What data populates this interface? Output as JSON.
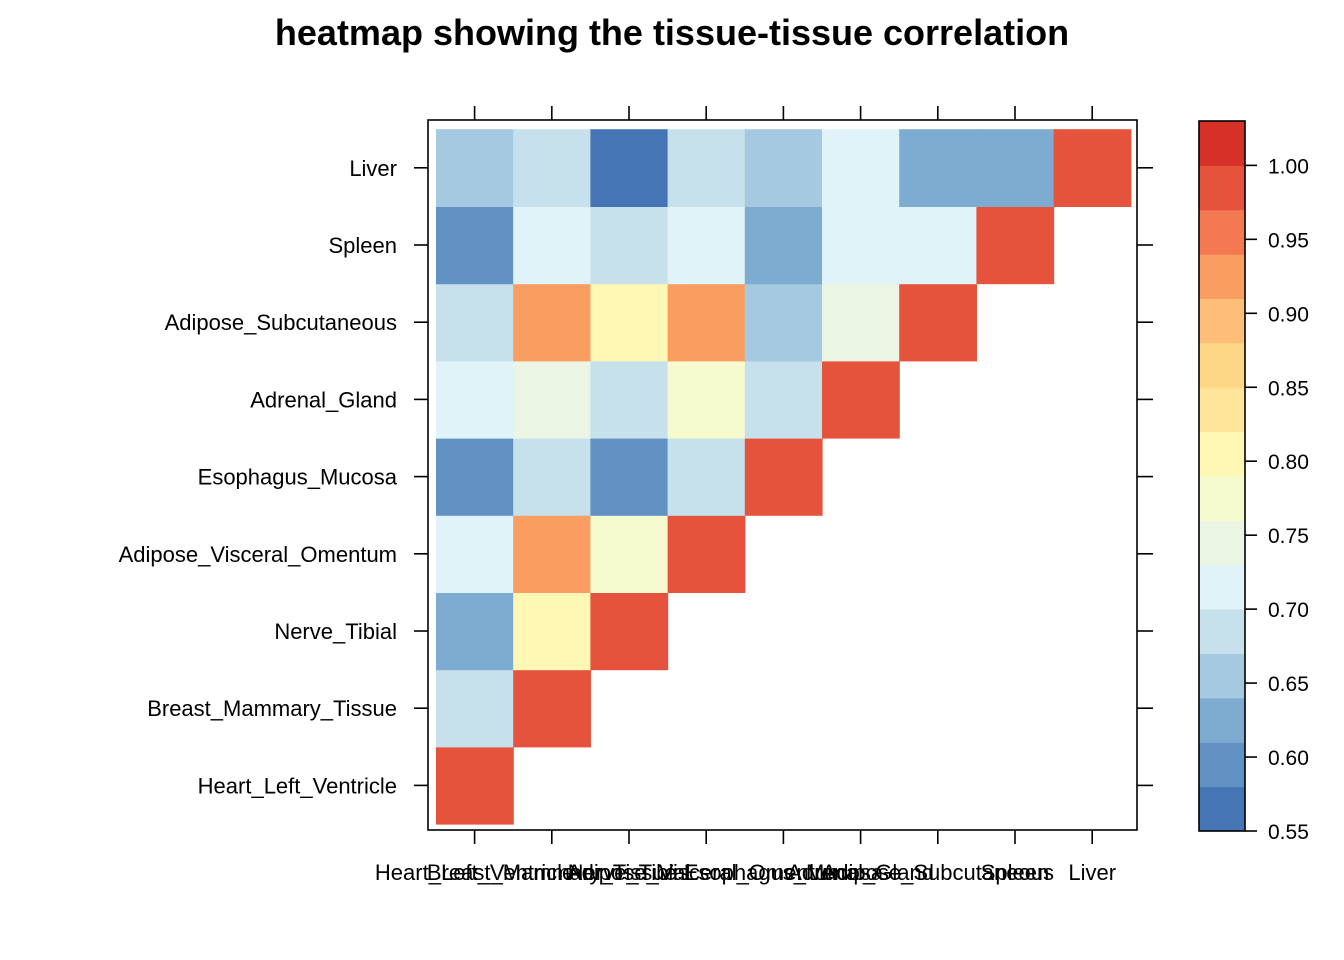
{
  "chart_data": {
    "type": "heatmap",
    "title": "heatmap showing the tissue-tissue correlation",
    "xlabel": "",
    "ylabel": "",
    "tissues": [
      "Heart_Left_Ventricle",
      "Breast_Mammary_Tissue",
      "Nerve_Tibial",
      "Adipose_Visceral_Omentum",
      "Esophagus_Mucosa",
      "Adrenal_Gland",
      "Adipose_Subcutaneous",
      "Spleen",
      "Liver"
    ],
    "matrix": [
      [
        1.0,
        null,
        null,
        null,
        null,
        null,
        null,
        null,
        null
      ],
      [
        0.68,
        1.0,
        null,
        null,
        null,
        null,
        null,
        null,
        null
      ],
      [
        0.63,
        0.79,
        1.0,
        null,
        null,
        null,
        null,
        null,
        null
      ],
      [
        0.71,
        0.94,
        0.77,
        1.0,
        null,
        null,
        null,
        null,
        null
      ],
      [
        0.61,
        0.68,
        0.61,
        0.68,
        1.0,
        null,
        null,
        null,
        null
      ],
      [
        0.71,
        0.74,
        0.68,
        0.77,
        0.68,
        1.0,
        null,
        null,
        null
      ],
      [
        0.68,
        0.94,
        0.79,
        0.94,
        0.66,
        0.74,
        1.0,
        null,
        null
      ],
      [
        0.61,
        0.71,
        0.68,
        0.71,
        0.63,
        0.71,
        0.71,
        1.0,
        null
      ],
      [
        0.66,
        0.68,
        0.56,
        0.68,
        0.66,
        0.71,
        0.63,
        0.63,
        1.0
      ]
    ],
    "colorbar": {
      "min": 0.55,
      "max": 1.03,
      "step": 0.03,
      "ticks": [
        "0.55",
        "0.60",
        "0.65",
        "0.70",
        "0.75",
        "0.80",
        "0.85",
        "0.90",
        "0.95",
        "1.00"
      ],
      "colors": [
        "#4575B4",
        "#6291C4",
        "#7EACD1",
        "#A5C9E0",
        "#C6E0EC",
        "#E0F3F8",
        "#EAF5E3",
        "#F5FBCF",
        "#FFF7B4",
        "#FEE59A",
        "#FDD786",
        "#FDBE79",
        "#F99D61",
        "#F47851",
        "#E6533C",
        "#D73027"
      ]
    }
  }
}
